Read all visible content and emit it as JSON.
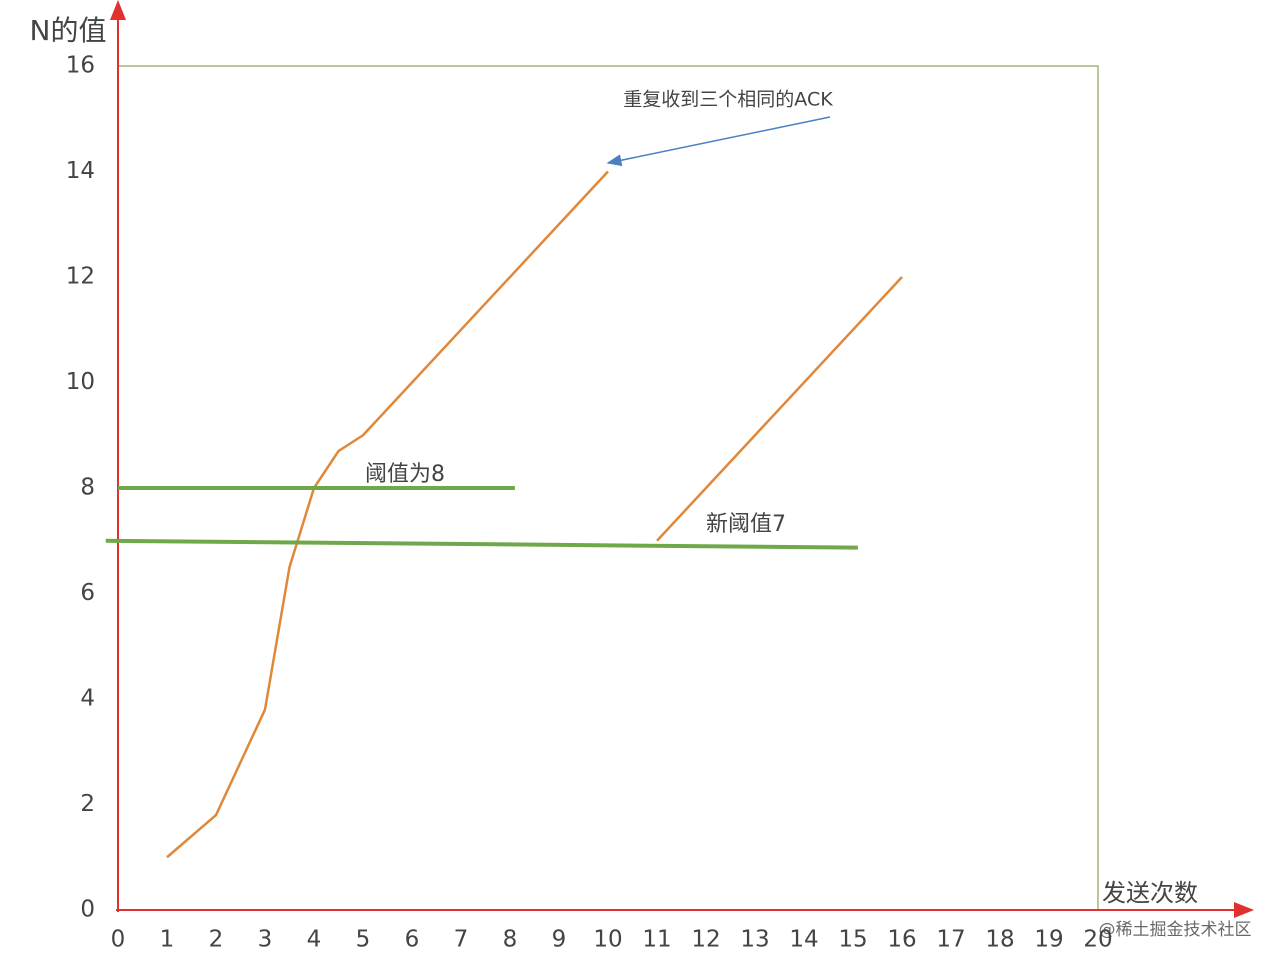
{
  "chart_data": {
    "type": "line",
    "y_label": "N的值",
    "x_label": "发送次数",
    "xlim": [
      0,
      20
    ],
    "xticks": [
      0,
      1,
      2,
      3,
      4,
      5,
      6,
      7,
      8,
      9,
      10,
      11,
      12,
      13,
      14,
      15,
      16,
      17,
      18,
      19,
      20
    ],
    "ylim": [
      0,
      16
    ],
    "yticks": [
      0,
      2,
      4,
      6,
      8,
      10,
      12,
      14,
      16
    ],
    "series": [
      {
        "color": "#e0883a",
        "x": [
          1,
          2,
          3,
          3.5,
          4,
          4.5,
          5,
          10
        ],
        "values": [
          1,
          1.8,
          3.8,
          6.5,
          8,
          8.7,
          9,
          14
        ]
      },
      {
        "color": "#e0883a",
        "x": [
          11,
          16
        ],
        "values": [
          7,
          12
        ]
      },
      {
        "color": "#6fa84a",
        "x": [
          0,
          8.1
        ],
        "values": [
          8,
          8
        ]
      },
      {
        "color": "#6fa84a",
        "x": [
          -0.25,
          15.1
        ],
        "values": [
          7,
          6.87
        ]
      }
    ],
    "annotations": [
      "重复收到三个相同的ACK",
      "阈值为8",
      "新阈值7"
    ],
    "watermarks": [
      "@稀土掘金技术社区"
    ]
  }
}
